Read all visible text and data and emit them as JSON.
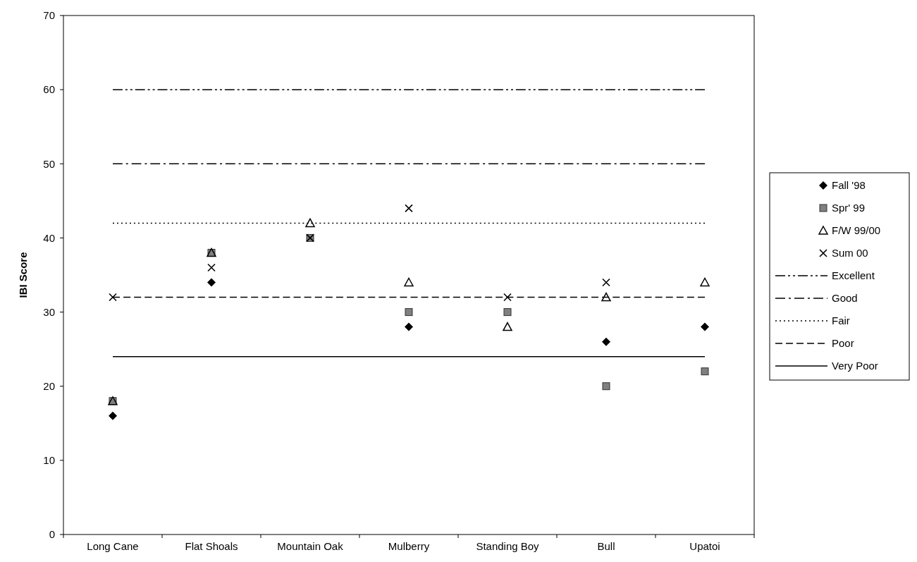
{
  "chart_data": {
    "type": "scatter",
    "ylabel": "IBI Score",
    "categories": [
      "Long Cane",
      "Flat Shoals",
      "Mountain Oak",
      "Mulberry",
      "Standing Boy",
      "Bull",
      "Upatoi"
    ],
    "ylim": [
      0,
      70
    ],
    "yticks": [
      0,
      10,
      20,
      30,
      40,
      50,
      60,
      70
    ],
    "grid": false,
    "legend": "right",
    "series": [
      {
        "name": "Fall '98",
        "color": "#000000",
        "marker": "diamond",
        "values": [
          16,
          34,
          null,
          28,
          null,
          26,
          28
        ]
      },
      {
        "name": "Spr' 99",
        "color": "#808080",
        "marker": "square",
        "values": [
          18,
          38,
          40,
          30,
          30,
          20,
          22
        ]
      },
      {
        "name": "F/W 99/00",
        "color": "#000000",
        "marker": "triangle",
        "values": [
          18,
          38,
          42,
          34,
          28,
          32,
          34
        ]
      },
      {
        "name": "Sum 00",
        "color": "#000000",
        "marker": "cross",
        "values": [
          32,
          36,
          40,
          44,
          32,
          34,
          null
        ]
      },
      {
        "name": "Excellent",
        "type": "line",
        "color": "#000000",
        "marker": "none",
        "line_style": "dashdotdot",
        "values": [
          60,
          60,
          60,
          60,
          60,
          60,
          60
        ]
      },
      {
        "name": "Good",
        "type": "line",
        "color": "#000000",
        "marker": "none",
        "line_style": "dashdot",
        "values": [
          50,
          50,
          50,
          50,
          50,
          50,
          50
        ]
      },
      {
        "name": "Fair",
        "type": "line",
        "color": "#000000",
        "marker": "none",
        "line_style": "dotted",
        "values": [
          42,
          42,
          42,
          42,
          42,
          42,
          42
        ]
      },
      {
        "name": "Poor",
        "type": "line",
        "color": "#000000",
        "marker": "none",
        "line_style": "dashed",
        "values": [
          32,
          32,
          32,
          32,
          32,
          32,
          32
        ]
      },
      {
        "name": "Very Poor",
        "type": "line",
        "color": "#000000",
        "marker": "none",
        "line_style": "solid",
        "values": [
          24,
          24,
          24,
          24,
          24,
          24,
          24
        ]
      }
    ]
  }
}
